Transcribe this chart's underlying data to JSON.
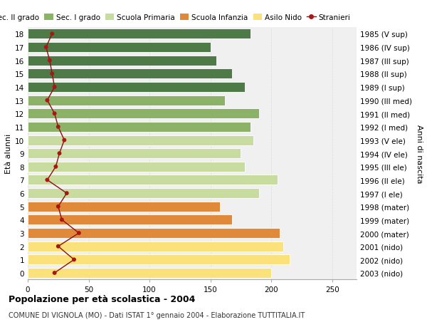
{
  "ages": [
    0,
    1,
    2,
    3,
    4,
    5,
    6,
    7,
    8,
    9,
    10,
    11,
    12,
    13,
    14,
    15,
    16,
    17,
    18
  ],
  "bar_values": [
    200,
    215,
    210,
    207,
    168,
    158,
    190,
    205,
    178,
    175,
    185,
    183,
    190,
    162,
    178,
    168,
    155,
    150,
    183
  ],
  "right_labels": [
    "2003 (nido)",
    "2002 (nido)",
    "2001 (nido)",
    "2000 (mater)",
    "1999 (mater)",
    "1998 (mater)",
    "1997 (I ele)",
    "1996 (II ele)",
    "1995 (III ele)",
    "1994 (IV ele)",
    "1993 (V ele)",
    "1992 (I med)",
    "1991 (II med)",
    "1990 (III med)",
    "1989 (I sup)",
    "1988 (II sup)",
    "1987 (III sup)",
    "1986 (IV sup)",
    "1985 (V sup)"
  ],
  "stranieri_values": [
    22,
    38,
    25,
    42,
    28,
    25,
    32,
    16,
    23,
    26,
    30,
    25,
    22,
    16,
    22,
    20,
    18,
    15,
    20
  ],
  "bar_colors": [
    "#FAE17A",
    "#FAE17A",
    "#FAE17A",
    "#E0893A",
    "#E0893A",
    "#E0893A",
    "#C8DCA0",
    "#C8DCA0",
    "#C8DCA0",
    "#C8DCA0",
    "#C8DCA0",
    "#8CB268",
    "#8CB268",
    "#8CB268",
    "#4E7A48",
    "#4E7A48",
    "#4E7A48",
    "#4E7A48",
    "#4E7A48"
  ],
  "legend_labels": [
    "Sec. II grado",
    "Sec. I grado",
    "Scuola Primaria",
    "Scuola Infanzia",
    "Asilo Nido",
    "Stranieri"
  ],
  "legend_colors": [
    "#4E7A48",
    "#8CB268",
    "#C8DCA0",
    "#E0893A",
    "#FAE17A",
    "#AA1111"
  ],
  "title": "Popolazione per età scolastica - 2004",
  "subtitle": "COMUNE DI VIGNOLA (MO) - Dati ISTAT 1° gennaio 2004 - Elaborazione TUTTITALIA.IT",
  "ylabel_left": "Età alunni",
  "ylabel_right": "Anni di nascita",
  "xlim": [
    0,
    270
  ],
  "background_color": "#FFFFFF",
  "bar_background": "#F0F0F0",
  "grid_color": "#DDDDDD",
  "stranieri_color": "#8B1010",
  "stranieri_dot_color": "#AA1515"
}
